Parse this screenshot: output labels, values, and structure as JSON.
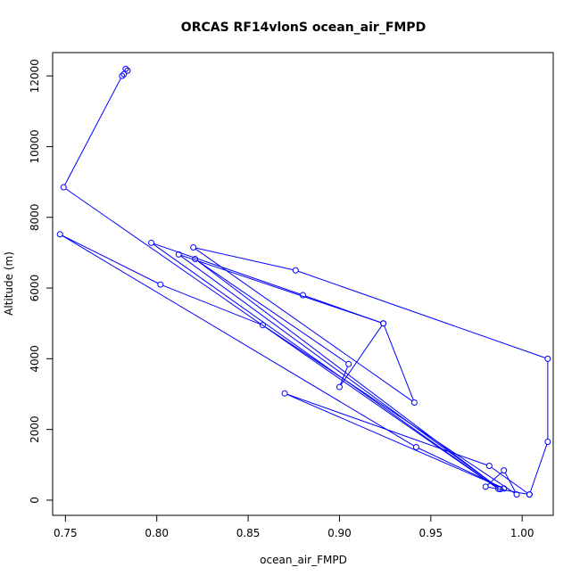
{
  "chart_data": {
    "type": "line",
    "title": "ORCAS RF14vlonS ocean_air_FMPD",
    "xlabel": "ocean_air_FMPD",
    "ylabel": "Altitude (m)",
    "xlim": [
      0.743,
      1.017
    ],
    "ylim": [
      -430,
      12660
    ],
    "x_ticks": [
      0.75,
      0.8,
      0.85,
      0.9,
      0.95,
      1.0
    ],
    "x_tick_labels": [
      "0.75",
      "0.80",
      "0.85",
      "0.90",
      "0.95",
      "1.00"
    ],
    "y_ticks": [
      0,
      2000,
      4000,
      6000,
      8000,
      10000,
      12000
    ],
    "y_tick_labels": [
      "0",
      "2000",
      "4000",
      "6000",
      "8000",
      "10000",
      "12000"
    ],
    "grid": false,
    "series": [
      {
        "color": "#0000ff",
        "marker": "open-circle",
        "points": [
          [
            0.783,
            12200
          ],
          [
            0.784,
            12150
          ],
          [
            0.782,
            12050
          ],
          [
            0.781,
            12000
          ],
          [
            0.749,
            8850
          ],
          [
            0.987,
            320
          ],
          [
            0.797,
            7280
          ],
          [
            0.88,
            5800
          ],
          [
            0.924,
            5000
          ],
          [
            0.9,
            3200
          ],
          [
            0.905,
            3850
          ],
          [
            0.821,
            6820
          ],
          [
            0.988,
            310
          ],
          [
            0.812,
            6950
          ],
          [
            0.924,
            5000
          ],
          [
            0.941,
            2760
          ],
          [
            0.82,
            7150
          ],
          [
            0.876,
            6500
          ],
          [
            1.014,
            4000
          ],
          [
            1.014,
            1650
          ],
          [
            1.004,
            160
          ],
          [
            0.98,
            380
          ],
          [
            0.99,
            840
          ],
          [
            0.997,
            160
          ],
          [
            0.858,
            4950
          ],
          [
            0.802,
            6100
          ],
          [
            0.747,
            7520
          ],
          [
            0.942,
            1500
          ],
          [
            0.99,
            330
          ],
          [
            0.87,
            3020
          ],
          [
            0.982,
            970
          ],
          [
            1.004,
            160
          ]
        ]
      }
    ]
  }
}
